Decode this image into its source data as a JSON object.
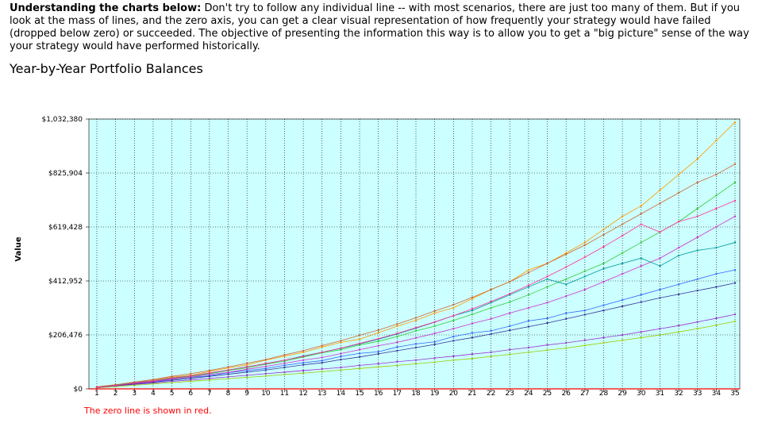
{
  "intro": {
    "lead": "Understanding the charts below:",
    "text": "Don't try to follow any individual line -- with most scenarios, there are just too many of them. But if you look at the mass of lines, and the zero axis, you can get a clear visual representation of how frequently your strategy would have failed (dropped below zero) or succeeded. The objective of presenting the information this way is to allow you to get a \"big picture\" sense of the way your strategy would have performed historically."
  },
  "chart_data": {
    "type": "line",
    "title": "Year-by-Year Portfolio Balances",
    "y_label": "Value",
    "note": "The zero line is shown in red.",
    "grid": true,
    "zero_line_color": "#ff0000",
    "background": "#ccffff",
    "categories": [
      "1",
      "2",
      "3",
      "4",
      "5",
      "6",
      "7",
      "8",
      "9",
      "10",
      "11",
      "12",
      "13",
      "14",
      "15",
      "16",
      "17",
      "18",
      "19",
      "20",
      "21",
      "22",
      "23",
      "24",
      "25",
      "26",
      "27",
      "28",
      "29",
      "30",
      "31",
      "32",
      "33",
      "34",
      "35"
    ],
    "ylim": [
      0,
      1032380
    ],
    "yticks": [
      {
        "value": 0,
        "label": "$0"
      },
      {
        "value": 206476,
        "label": "$206,476"
      },
      {
        "value": 412952,
        "label": "$412,952"
      },
      {
        "value": 619428,
        "label": "$619,428"
      },
      {
        "value": 825904,
        "label": "$825,904"
      },
      {
        "value": 1032380,
        "label": "$1,032,380"
      }
    ],
    "series": [
      {
        "color": "#ff9900",
        "values": [
          6000,
          14000,
          24000,
          33000,
          45000,
          52000,
          66000,
          80000,
          92000,
          110000,
          125000,
          140000,
          160000,
          178000,
          190000,
          215000,
          240000,
          262000,
          290000,
          310000,
          345000,
          380000,
          410000,
          455000,
          480000,
          520000,
          560000,
          610000,
          660000,
          700000,
          760000,
          820000,
          880000,
          950000,
          1020000
        ]
      },
      {
        "color": "#9933cc",
        "values": [
          5000,
          11000,
          17000,
          22000,
          29000,
          34000,
          40000,
          46000,
          52000,
          58000,
          64000,
          70000,
          76000,
          82000,
          90000,
          96000,
          104000,
          110000,
          118000,
          125000,
          133000,
          140000,
          150000,
          158000,
          168000,
          176000,
          186000,
          196000,
          206000,
          218000,
          230000,
          242000,
          256000,
          270000,
          285000
        ]
      },
      {
        "color": "#33cc33",
        "values": [
          7000,
          15000,
          22000,
          30000,
          40000,
          48000,
          58000,
          70000,
          80000,
          94000,
          106000,
          122000,
          138000,
          150000,
          168000,
          182000,
          200000,
          222000,
          240000,
          262000,
          285000,
          310000,
          332000,
          360000,
          390000,
          420000,
          450000,
          480000,
          520000,
          560000,
          600000,
          640000,
          690000,
          740000,
          790000
        ]
      },
      {
        "color": "#3366ff",
        "values": [
          6000,
          12000,
          20000,
          26000,
          36000,
          44000,
          50000,
          62000,
          70000,
          78000,
          90000,
          100000,
          108000,
          124000,
          136000,
          142000,
          160000,
          172000,
          180000,
          200000,
          214000,
          222000,
          240000,
          260000,
          270000,
          290000,
          300000,
          320000,
          340000,
          360000,
          380000,
          400000,
          420000,
          440000,
          455000
        ]
      },
      {
        "color": "#cc33cc",
        "values": [
          5000,
          13000,
          21000,
          28000,
          38000,
          45000,
          55000,
          63000,
          75000,
          86000,
          98000,
          110000,
          120000,
          135000,
          150000,
          165000,
          178000,
          195000,
          212000,
          230000,
          250000,
          268000,
          290000,
          310000,
          330000,
          355000,
          380000,
          410000,
          440000,
          470000,
          500000,
          540000,
          580000,
          620000,
          660000
        ]
      },
      {
        "color": "#009999",
        "values": [
          6000,
          14000,
          23000,
          32000,
          42000,
          50000,
          60000,
          72000,
          85000,
          96000,
          110000,
          126000,
          140000,
          155000,
          172000,
          190000,
          210000,
          232000,
          255000,
          280000,
          300000,
          330000,
          360000,
          390000,
          420000,
          400000,
          430000,
          460000,
          480000,
          500000,
          470000,
          510000,
          530000,
          540000,
          560000
        ]
      },
      {
        "color": "#cc6633",
        "values": [
          8000,
          16000,
          26000,
          36000,
          48000,
          58000,
          70000,
          84000,
          98000,
          112000,
          130000,
          146000,
          166000,
          184000,
          205000,
          225000,
          248000,
          272000,
          298000,
          322000,
          350000,
          380000,
          410000,
          445000,
          480000,
          515000,
          550000,
          590000,
          630000,
          670000,
          710000,
          750000,
          790000,
          820000,
          860000
        ]
      },
      {
        "color": "#99cc00",
        "values": [
          4000,
          9000,
          14000,
          19000,
          24000,
          29000,
          34000,
          39000,
          44000,
          49000,
          55000,
          60000,
          66000,
          72000,
          78000,
          84000,
          90000,
          96000,
          102000,
          110000,
          116000,
          124000,
          132000,
          140000,
          148000,
          156000,
          166000,
          176000,
          186000,
          196000,
          206000,
          218000,
          230000,
          244000,
          258000
        ]
      },
      {
        "color": "#333399",
        "values": [
          5000,
          12000,
          19000,
          25000,
          33000,
          40000,
          48000,
          56000,
          64000,
          72000,
          82000,
          92000,
          100000,
          112000,
          122000,
          134000,
          146000,
          158000,
          170000,
          184000,
          196000,
          210000,
          224000,
          238000,
          252000,
          268000,
          284000,
          300000,
          316000,
          332000,
          348000,
          362000,
          376000,
          390000,
          405000
        ]
      },
      {
        "color": "#ff3399",
        "values": [
          6000,
          13000,
          22000,
          31000,
          41000,
          50000,
          61000,
          72000,
          84000,
          97000,
          110000,
          124000,
          140000,
          156000,
          174000,
          192000,
          212000,
          234000,
          256000,
          280000,
          306000,
          334000,
          364000,
          396000,
          430000,
          466000,
          504000,
          544000,
          586000,
          630000,
          600000,
          640000,
          660000,
          690000,
          720000
        ]
      }
    ]
  }
}
